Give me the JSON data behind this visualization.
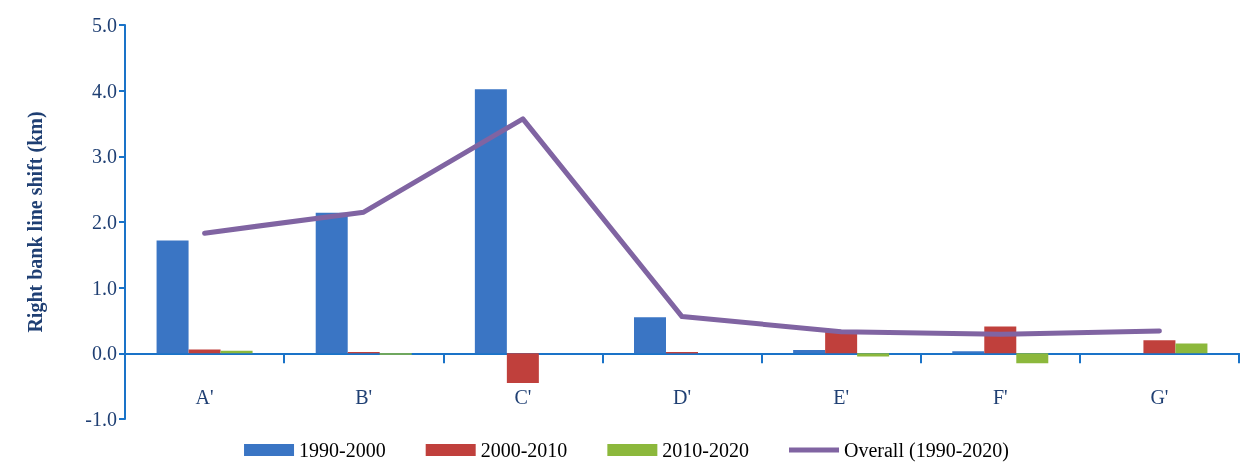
{
  "chart_data": {
    "type": "bar",
    "ylabel": "Right bank line shift (km)",
    "categories": [
      "A'",
      "B'",
      "C'",
      "D'",
      "E'",
      "F'",
      "G'"
    ],
    "series": [
      {
        "name": "1990-2000",
        "color": "#3a75c4",
        "values": [
          1.72,
          2.14,
          4.02,
          0.55,
          0.05,
          0.03,
          0.0
        ]
      },
      {
        "name": "2000-2010",
        "color": "#c0403c",
        "values": [
          0.06,
          0.02,
          -0.45,
          0.02,
          0.33,
          0.41,
          0.2
        ]
      },
      {
        "name": "2010-2020",
        "color": "#8cb83c",
        "values": [
          0.04,
          -0.02,
          0.0,
          0.0,
          -0.05,
          -0.15,
          0.15
        ]
      },
      {
        "name": "Overall (1990-2020)",
        "type": "line",
        "color": "#8064a2",
        "values": [
          1.83,
          2.15,
          3.57,
          0.56,
          0.33,
          0.29,
          0.34
        ]
      }
    ],
    "ylim": [
      -1,
      5
    ],
    "yticks": [
      {
        "value": -1,
        "label": "-1.0"
      },
      {
        "value": 0,
        "label": "0.0"
      },
      {
        "value": 1,
        "label": "1.0"
      },
      {
        "value": 2,
        "label": "2.0"
      },
      {
        "value": 3,
        "label": "3.0"
      },
      {
        "value": 4,
        "label": "4.0"
      },
      {
        "value": 5,
        "label": "5.0"
      }
    ],
    "grid": false,
    "legend": "bottom",
    "marker": "none"
  }
}
